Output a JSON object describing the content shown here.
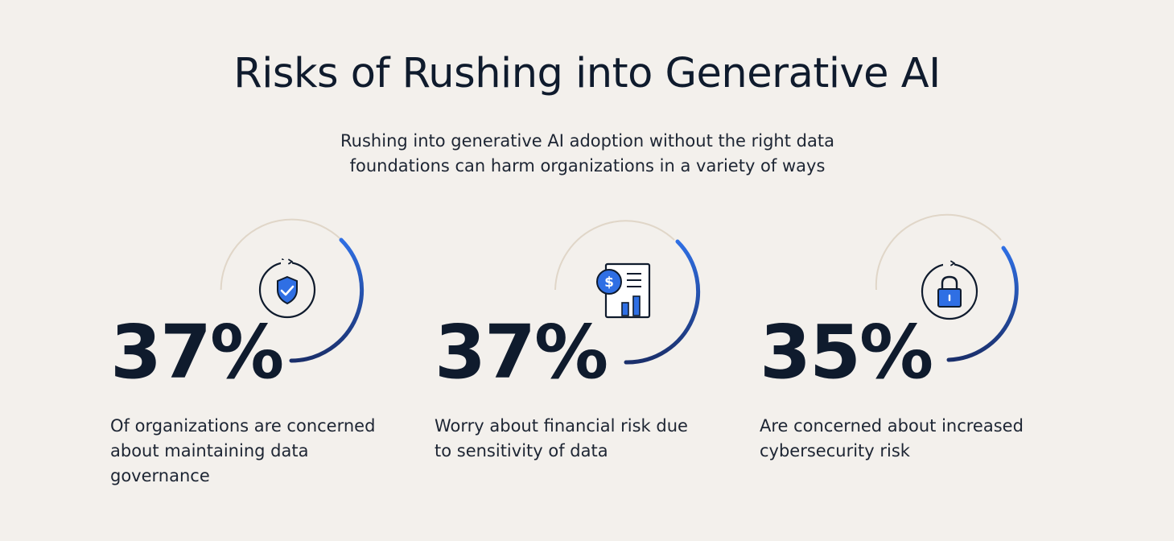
{
  "title": "Risks of Rushing into Generative AI",
  "subtitle": "Rushing into generative AI adoption without the right data foundations can harm organizations in a variety of ways",
  "colors": {
    "background": "#f3f0ec",
    "text": "#0f1b2d",
    "accent_blue": "#2f6fe4",
    "ring_track": "#e0d6c8"
  },
  "stats": [
    {
      "value": "37%",
      "description": "Of organizations are concerned about maintaining data governance",
      "icon": "shield-check-icon"
    },
    {
      "value": "37%",
      "description": "Worry about financial risk due to sensitivity of data",
      "icon": "financial-report-icon"
    },
    {
      "value": "35%",
      "description": "Are concerned about increased cybersecurity risk",
      "icon": "padlock-icon"
    }
  ]
}
